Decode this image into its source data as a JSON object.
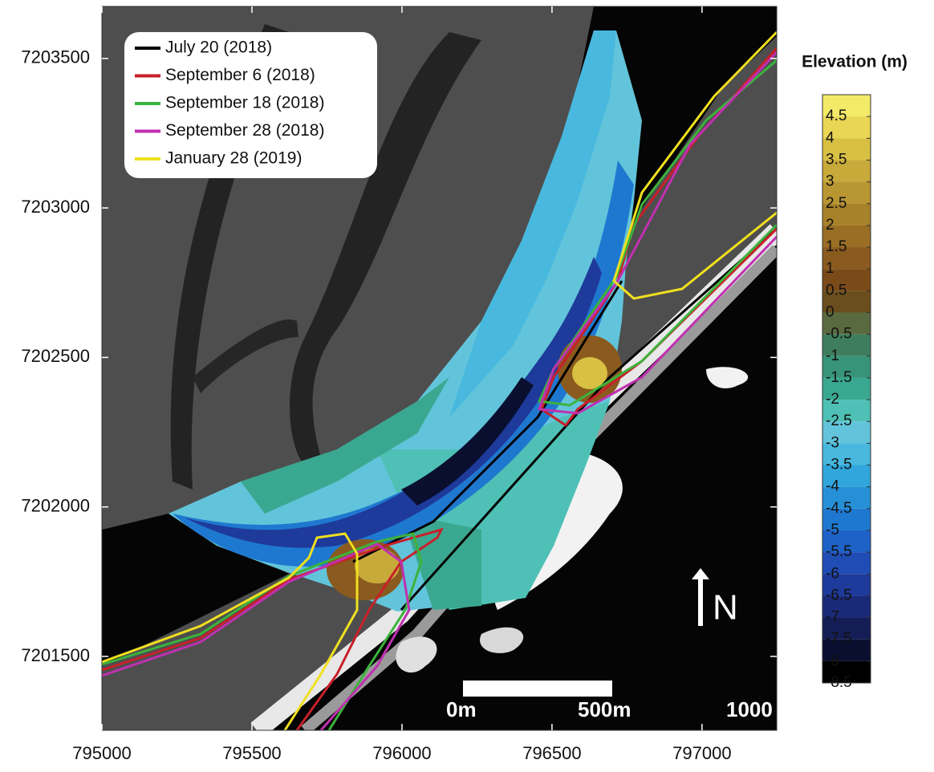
{
  "map": {
    "xlim": [
      795000,
      797249
    ],
    "ylim": [
      7201253,
      7203674
    ],
    "xticks": [
      795000,
      795500,
      796000,
      796500,
      797000
    ],
    "yticks": [
      7201500,
      7202000,
      7202500,
      7203000,
      7203500
    ],
    "legend": {
      "items": [
        {
          "name": "July 20 (2018)",
          "color": "#000000"
        },
        {
          "name": "September 6 (2018)",
          "color": "#c8202a"
        },
        {
          "name": "September 18 (2018)",
          "color": "#3cb33c"
        },
        {
          "name": "September 28 (2018)",
          "color": "#c030b0"
        },
        {
          "name": "January 28 (2019)",
          "color": "#f0e020"
        }
      ]
    },
    "colorbar": {
      "title": "Elevation (m)",
      "lim": [
        -8.5,
        5
      ],
      "ticks": [
        4.5,
        4,
        3.5,
        3,
        2.5,
        2,
        1.5,
        1,
        0.5,
        0,
        -0.5,
        -1,
        -1.5,
        -2,
        -2.5,
        -3,
        -3.5,
        -4,
        -4.5,
        -5,
        -5.5,
        -6,
        -6.5,
        -7,
        -7.5,
        -8,
        -8.5
      ],
      "colors": [
        "#f4ea6a",
        "#e8d654",
        "#d8c044",
        "#c8aa3a",
        "#b89632",
        "#a8822a",
        "#9a6e24",
        "#8a5a1e",
        "#7a4a18",
        "#6a4e1e",
        "#5a6a40",
        "#3e7e5e",
        "#389478",
        "#3aa890",
        "#4fc0b5",
        "#62c4da",
        "#48b8de",
        "#30a6dc",
        "#2590d6",
        "#1f78d0",
        "#1e62c8",
        "#1f4db5",
        "#1e3a9a",
        "#1a2a78",
        "#141d55",
        "#0a0f30",
        "#000000"
      ]
    },
    "scale_bar": {
      "labels": [
        "0m",
        "500m",
        "1000"
      ]
    },
    "north": "N"
  }
}
